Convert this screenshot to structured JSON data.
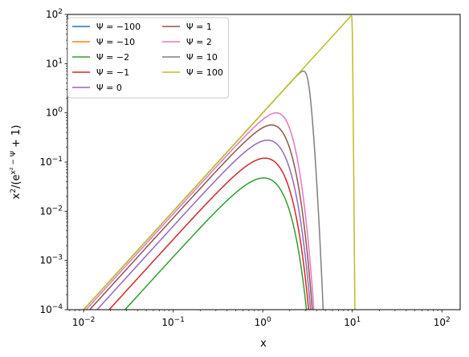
{
  "chart_data": {
    "type": "line",
    "xlabel": "x",
    "ylabel_parts": {
      "base": "x",
      "exp1": "2",
      "mid": "/(e",
      "exp2": "x² − Ψ",
      "tail": " + 1)"
    },
    "xscale": "log",
    "yscale": "log",
    "xlim": [
      0.0066,
      160
    ],
    "ylim": [
      0.0001,
      100
    ],
    "grid": false,
    "legend": {
      "placement": "upper left",
      "columns": 2
    },
    "x_ticks": [
      {
        "value": 0.01,
        "base": "10",
        "exp": "−2"
      },
      {
        "value": 0.1,
        "base": "10",
        "exp": "−1"
      },
      {
        "value": 1,
        "base": "10",
        "exp": "0"
      },
      {
        "value": 10,
        "base": "10",
        "exp": "1"
      },
      {
        "value": 100,
        "base": "10",
        "exp": "2"
      }
    ],
    "y_ticks": [
      {
        "value": 0.0001,
        "base": "10",
        "exp": "−4"
      },
      {
        "value": 0.001,
        "base": "10",
        "exp": "−3"
      },
      {
        "value": 0.01,
        "base": "10",
        "exp": "−2"
      },
      {
        "value": 0.1,
        "base": "10",
        "exp": "−1"
      },
      {
        "value": 1,
        "base": "10",
        "exp": "0"
      },
      {
        "value": 10,
        "base": "10",
        "exp": "1"
      },
      {
        "value": 100,
        "base": "10",
        "exp": "2"
      }
    ],
    "series": [
      {
        "name": "Ψ = −100",
        "psi": -100,
        "color": "#1f77b4"
      },
      {
        "name": "Ψ = −10",
        "psi": -10,
        "color": "#ff7f0e"
      },
      {
        "name": "Ψ = −2",
        "psi": -2,
        "color": "#2ca02c"
      },
      {
        "name": "Ψ = −1",
        "psi": -1,
        "color": "#d62728"
      },
      {
        "name": "Ψ = 0",
        "psi": 0,
        "color": "#9467bd"
      },
      {
        "name": "Ψ = 1",
        "psi": 1,
        "color": "#8c564b"
      },
      {
        "name": "Ψ = 2",
        "psi": 2,
        "color": "#e377c2"
      },
      {
        "name": "Ψ = 10",
        "psi": 10,
        "color": "#7f7f7f"
      },
      {
        "name": "Ψ = 100",
        "psi": 100,
        "color": "#bcbd22"
      }
    ]
  }
}
